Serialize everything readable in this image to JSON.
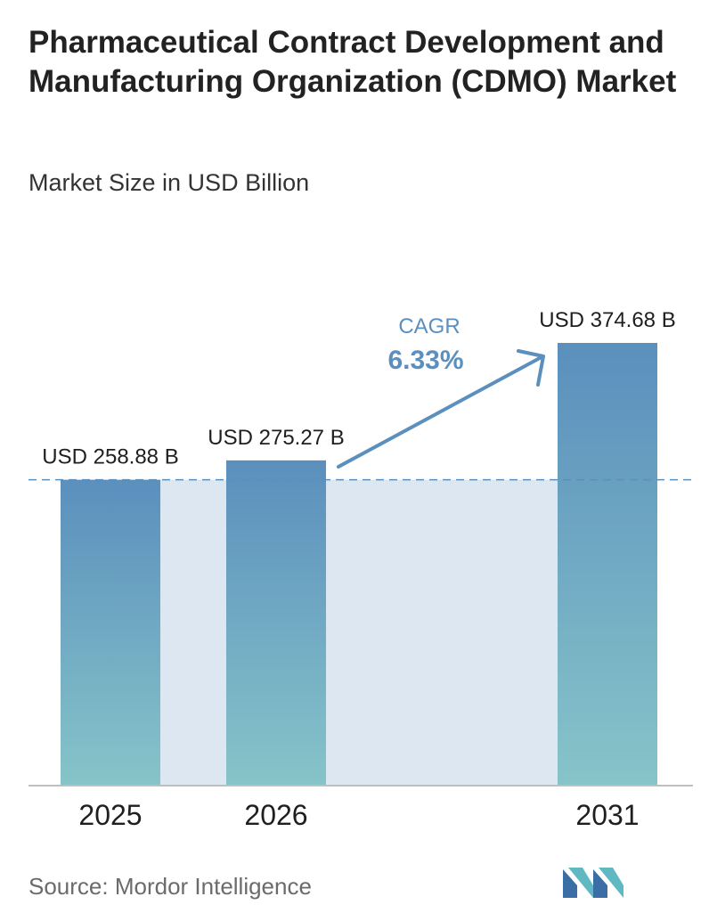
{
  "header": {
    "title": "Pharmaceutical Contract Development and Manufacturing Organization (CDMO) Market",
    "subtitle": "Market Size in USD Billion"
  },
  "cagr": {
    "label": "CAGR",
    "value": "6.33%"
  },
  "footer": {
    "source": "Source:  Mordor Intelligence"
  },
  "colors": {
    "bar_top": "#5b8fbd",
    "bar_bottom": "#86c4c9",
    "band": "#dde7f1",
    "dashed_line": "#5b8fbd",
    "cagr_text": "#5b8fbd",
    "arrow": "#5b8fbd",
    "axis": "#bfbfbf",
    "logo_dark": "#3a6ea5",
    "logo_light": "#5fb8c2"
  },
  "chart_data": {
    "type": "bar",
    "categories": [
      "2025",
      "2026",
      "2031"
    ],
    "values": [
      258.88,
      275.27,
      374.68
    ],
    "data_labels": [
      "USD 258.88 B",
      "USD 275.27 B",
      "USD 374.68 B"
    ],
    "title": "Pharmaceutical Contract Development and Manufacturing Organization (CDMO) Market",
    "subtitle": "Market Size in USD Billion",
    "xlabel": "",
    "ylabel": "",
    "grid": false,
    "legend": "none",
    "reference_line": 258.88,
    "annotation": "CAGR 6.33%"
  }
}
